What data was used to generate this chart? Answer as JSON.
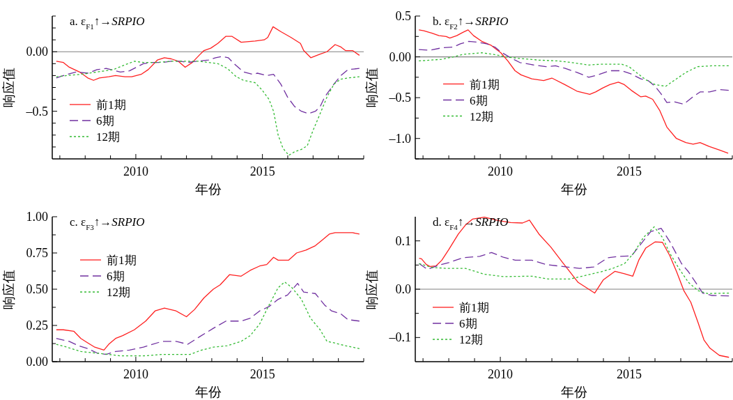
{
  "chart_data": [
    {
      "type": "line",
      "title": "a. ε$_{F1}$↑→*SRPIO*",
      "xlabel": "年份",
      "ylabel": "响应值",
      "legend": "bottom left",
      "xlim": [
        2006.7,
        2019
      ],
      "xticks": [
        {
          "value": 2007,
          "label": null
        },
        {
          "value": 2008,
          "label": null
        },
        {
          "value": 2009,
          "label": null
        },
        {
          "value": 2010,
          "label": "2010"
        },
        {
          "value": 2011,
          "label": null
        },
        {
          "value": 2012,
          "label": null
        },
        {
          "value": 2013,
          "label": null
        },
        {
          "value": 2014,
          "label": null
        },
        {
          "value": 2015,
          "label": "2015"
        },
        {
          "value": 2016,
          "label": null
        },
        {
          "value": 2017,
          "label": null
        },
        {
          "value": 2018,
          "label": null
        },
        {
          "value": 2019,
          "label": null
        }
      ],
      "ylim": [
        -0.9,
        0.3
      ],
      "yticks": [
        {
          "value": -0.8,
          "label": null
        },
        {
          "value": -0.7,
          "label": null
        },
        {
          "value": -0.6,
          "label": null
        },
        {
          "value": -0.5,
          "label": "–0.5"
        },
        {
          "value": -0.4,
          "label": null
        },
        {
          "value": -0.3,
          "label": null
        },
        {
          "value": -0.2,
          "label": null
        },
        {
          "value": -0.1,
          "label": null
        },
        {
          "value": 0,
          "label": "0.00"
        },
        {
          "value": 0.1,
          "label": null
        },
        {
          "value": 0.2,
          "label": null
        },
        {
          "value": 0.3,
          "label": null
        }
      ],
      "ref_lines": [
        {
          "axis": "y",
          "value": 0,
          "color": "#808080"
        }
      ],
      "series": [
        {
          "name": "前1期",
          "color": "#ff2020",
          "line_style": "solid",
          "x": [
            2006.86,
            2007.14,
            2007.37,
            2007.78,
            2008.1,
            2008.33,
            2008.56,
            2008.93,
            2009.2,
            2009.57,
            2009.84,
            2010.21,
            2010.49,
            2010.85,
            2011.13,
            2011.4,
            2011.68,
            2011.95,
            2012.23,
            2012.5,
            2012.69,
            2012.96,
            2013.24,
            2013.56,
            2013.79,
            2014.16,
            2014.71,
            2015.07,
            2015.21,
            2015.42,
            2015.72,
            2016.13,
            2016.5,
            2016.63,
            2016.91,
            2017.28,
            2017.55,
            2017.87,
            2018.1,
            2018.28,
            2018.56,
            2018.83
          ],
          "values": [
            -0.08,
            -0.09,
            -0.13,
            -0.17,
            -0.22,
            -0.24,
            -0.22,
            -0.21,
            -0.2,
            -0.21,
            -0.21,
            -0.19,
            -0.15,
            -0.07,
            -0.05,
            -0.06,
            -0.08,
            -0.13,
            -0.09,
            -0.03,
            0.01,
            0.03,
            0.07,
            0.13,
            0.13,
            0.08,
            0.09,
            0.1,
            0.12,
            0.21,
            0.17,
            0.12,
            0.07,
            0.01,
            -0.05,
            -0.02,
            0.0,
            0.06,
            0.04,
            0.01,
            0.01,
            -0.03
          ]
        },
        {
          "name": "6期",
          "color": "#7030a0",
          "line_style": "dashed",
          "x": [
            2006.86,
            2007.28,
            2007.64,
            2008.1,
            2008.47,
            2008.83,
            2009.2,
            2009.39,
            2009.75,
            2010.03,
            2010.3,
            2010.67,
            2011.04,
            2011.4,
            2011.77,
            2012.05,
            2012.41,
            2012.87,
            2013.15,
            2013.42,
            2013.65,
            2013.88,
            2014.25,
            2014.61,
            2014.8,
            2015.17,
            2015.44,
            2015.72,
            2015.99,
            2016.27,
            2016.54,
            2016.82,
            2017.09,
            2017.28,
            2017.46,
            2017.83,
            2018.1,
            2018.38,
            2018.83
          ],
          "values": [
            -0.22,
            -0.19,
            -0.17,
            -0.18,
            -0.15,
            -0.14,
            -0.16,
            -0.17,
            -0.16,
            -0.13,
            -0.1,
            -0.09,
            -0.09,
            -0.08,
            -0.08,
            -0.09,
            -0.08,
            -0.07,
            -0.05,
            -0.04,
            -0.05,
            -0.1,
            -0.17,
            -0.19,
            -0.18,
            -0.2,
            -0.19,
            -0.27,
            -0.38,
            -0.46,
            -0.5,
            -0.52,
            -0.5,
            -0.46,
            -0.38,
            -0.27,
            -0.2,
            -0.15,
            -0.14
          ]
        },
        {
          "name": "12期",
          "color": "#33bb33",
          "line_style": "dotted",
          "x": [
            2006.86,
            2007.28,
            2007.83,
            2008.47,
            2009.11,
            2009.57,
            2009.94,
            2010.3,
            2010.85,
            2011.4,
            2011.95,
            2012.5,
            2012.87,
            2013.24,
            2013.61,
            2013.97,
            2014.25,
            2014.71,
            2014.98,
            2015.26,
            2015.44,
            2015.62,
            2015.81,
            2016.04,
            2016.27,
            2016.54,
            2016.77,
            2017.0,
            2017.28,
            2017.55,
            2017.83,
            2018.1,
            2018.38,
            2018.83
          ],
          "values": [
            -0.21,
            -0.2,
            -0.19,
            -0.17,
            -0.15,
            -0.11,
            -0.08,
            -0.09,
            -0.09,
            -0.08,
            -0.08,
            -0.08,
            -0.09,
            -0.1,
            -0.14,
            -0.21,
            -0.24,
            -0.26,
            -0.32,
            -0.4,
            -0.5,
            -0.7,
            -0.81,
            -0.87,
            -0.84,
            -0.82,
            -0.79,
            -0.66,
            -0.52,
            -0.38,
            -0.27,
            -0.23,
            -0.22,
            -0.21
          ]
        }
      ]
    },
    {
      "type": "line",
      "title": "b. ε$_{F2}$↑→*SRPIO*",
      "xlabel": "年份",
      "ylabel": "响应值",
      "legend": "left",
      "xlim": [
        2006.7,
        2019
      ],
      "xticks": [
        {
          "value": 2007,
          "label": null
        },
        {
          "value": 2008,
          "label": null
        },
        {
          "value": 2009,
          "label": null
        },
        {
          "value": 2010,
          "label": "2010"
        },
        {
          "value": 2011,
          "label": null
        },
        {
          "value": 2012,
          "label": null
        },
        {
          "value": 2013,
          "label": null
        },
        {
          "value": 2014,
          "label": null
        },
        {
          "value": 2015,
          "label": "2015"
        },
        {
          "value": 2016,
          "label": null
        },
        {
          "value": 2017,
          "label": null
        },
        {
          "value": 2018,
          "label": null
        },
        {
          "value": 2019,
          "label": null
        }
      ],
      "ylim": [
        -1.25,
        0.5
      ],
      "yticks": [
        {
          "value": -1.25,
          "label": null
        },
        {
          "value": -1,
          "label": "–1.0"
        },
        {
          "value": -0.75,
          "label": null
        },
        {
          "value": -0.5,
          "label": "–0.5"
        },
        {
          "value": -0.25,
          "label": null
        },
        {
          "value": 0,
          "label": "0.00"
        },
        {
          "value": 0.25,
          "label": null
        },
        0.5
      ],
      "ref_lines": [
        {
          "axis": "y",
          "value": 0,
          "color": "#808080"
        }
      ],
      "series": [
        {
          "name": "前1期",
          "color": "#ff2020",
          "line_style": "solid",
          "x": [
            2006.84,
            2007.03,
            2007.35,
            2007.62,
            2007.9,
            2008.04,
            2008.31,
            2008.55,
            2008.75,
            2008.96,
            2009.28,
            2009.65,
            2010.02,
            2010.29,
            2010.57,
            2010.8,
            2011.22,
            2011.68,
            2012.0,
            2012.5,
            2012.97,
            2013.47,
            2013.7,
            2013.98,
            2014.25,
            2014.58,
            2014.81,
            2015.08,
            2015.45,
            2015.64,
            2015.91,
            2016.19,
            2016.46,
            2016.83,
            2017.2,
            2017.48,
            2017.75,
            2018.12,
            2018.49,
            2018.84
          ],
          "values": [
            0.33,
            0.32,
            0.29,
            0.26,
            0.25,
            0.23,
            0.26,
            0.3,
            0.33,
            0.26,
            0.19,
            0.14,
            0.05,
            -0.05,
            -0.17,
            -0.22,
            -0.27,
            -0.29,
            -0.26,
            -0.34,
            -0.42,
            -0.46,
            -0.43,
            -0.38,
            -0.34,
            -0.31,
            -0.34,
            -0.41,
            -0.49,
            -0.48,
            -0.52,
            -0.66,
            -0.86,
            -1.0,
            -1.05,
            -1.07,
            -1.05,
            -1.1,
            -1.14,
            -1.18
          ]
        },
        {
          "name": "6期",
          "color": "#7030a0",
          "line_style": "dashed",
          "x": [
            2006.84,
            2007.26,
            2007.72,
            2008.18,
            2008.45,
            2008.78,
            2009.1,
            2009.47,
            2009.79,
            2010.02,
            2010.39,
            2010.76,
            2011.31,
            2011.77,
            2012.14,
            2012.5,
            2012.97,
            2013.43,
            2013.79,
            2014.25,
            2014.71,
            2015.08,
            2015.45,
            2015.73,
            2016.0,
            2016.23,
            2016.46,
            2016.74,
            2017.11,
            2017.43,
            2017.75,
            2018.12,
            2018.49,
            2018.86
          ],
          "values": [
            0.09,
            0.08,
            0.11,
            0.12,
            0.16,
            0.19,
            0.18,
            0.16,
            0.12,
            0.06,
            -0.01,
            -0.07,
            -0.1,
            -0.12,
            -0.11,
            -0.14,
            -0.19,
            -0.25,
            -0.22,
            -0.17,
            -0.17,
            -0.21,
            -0.27,
            -0.29,
            -0.36,
            -0.45,
            -0.56,
            -0.55,
            -0.58,
            -0.5,
            -0.43,
            -0.43,
            -0.4,
            -0.41
          ]
        },
        {
          "name": "12期",
          "color": "#33bb33",
          "line_style": "dotted",
          "x": [
            2006.84,
            2007.3,
            2007.72,
            2008.18,
            2008.55,
            2008.91,
            2009.28,
            2009.74,
            2010.2,
            2010.76,
            2011.49,
            2012.23,
            2012.78,
            2013.43,
            2013.89,
            2014.71,
            2014.99,
            2015.27,
            2015.64,
            2016.0,
            2016.42,
            2016.74,
            2017.2,
            2017.66,
            2018.21,
            2018.86
          ],
          "values": [
            -0.05,
            -0.04,
            -0.03,
            0.0,
            0.03,
            0.04,
            0.05,
            0.03,
            0.0,
            -0.02,
            -0.04,
            -0.05,
            -0.07,
            -0.1,
            -0.09,
            -0.09,
            -0.12,
            -0.19,
            -0.28,
            -0.34,
            -0.36,
            -0.29,
            -0.19,
            -0.12,
            -0.11,
            -0.11
          ]
        }
      ]
    },
    {
      "type": "line",
      "title": "c. ε$_{F3}$↑→*SRPIO*",
      "xlabel": "年份",
      "ylabel": "响应值",
      "legend": "top left",
      "xlim": [
        2006.7,
        2019
      ],
      "xticks": [
        {
          "value": 2007,
          "label": null
        },
        {
          "value": 2008,
          "label": null
        },
        {
          "value": 2009,
          "label": null
        },
        {
          "value": 2010,
          "label": "2010"
        },
        {
          "value": 2011,
          "label": null
        },
        {
          "value": 2012,
          "label": null
        },
        {
          "value": 2013,
          "label": null
        },
        {
          "value": 2014,
          "label": null
        },
        {
          "value": 2015,
          "label": "2015"
        },
        {
          "value": 2016,
          "label": null
        },
        {
          "value": 2017,
          "label": null
        },
        {
          "value": 2018,
          "label": null
        },
        {
          "value": 2019,
          "label": null
        }
      ],
      "ylim": [
        0,
        1
      ],
      "yticks": [
        {
          "value": 0,
          "label": "0.00"
        },
        {
          "value": 0.125,
          "label": null
        },
        0.25,
        {
          "value": 0.375,
          "label": null
        },
        {
          "value": 0.5,
          "label": "0.50"
        },
        {
          "value": 0.625,
          "label": null
        },
        0.75,
        {
          "value": 0.875,
          "label": null
        },
        {
          "value": 1,
          "label": "1.00"
        }
      ],
      "series": [
        {
          "name": "前1期",
          "color": "#ff2020",
          "line_style": "solid",
          "x": [
            2006.86,
            2007.14,
            2007.55,
            2007.83,
            2008.1,
            2008.38,
            2008.74,
            2008.93,
            2009.2,
            2009.48,
            2009.94,
            2010.39,
            2010.76,
            2011.13,
            2011.59,
            2012.0,
            2012.32,
            2012.69,
            2013.06,
            2013.33,
            2013.7,
            2014.16,
            2014.52,
            2014.89,
            2015.17,
            2015.44,
            2015.62,
            2016.03,
            2016.35,
            2016.72,
            2017.09,
            2017.37,
            2017.64,
            2017.87,
            2018.19,
            2018.56,
            2018.83
          ],
          "values": [
            0.22,
            0.22,
            0.21,
            0.16,
            0.13,
            0.1,
            0.08,
            0.12,
            0.16,
            0.18,
            0.22,
            0.28,
            0.35,
            0.37,
            0.35,
            0.31,
            0.36,
            0.44,
            0.5,
            0.53,
            0.6,
            0.59,
            0.63,
            0.66,
            0.67,
            0.72,
            0.7,
            0.7,
            0.75,
            0.77,
            0.8,
            0.84,
            0.88,
            0.89,
            0.89,
            0.89,
            0.88
          ]
        },
        {
          "name": "6期",
          "color": "#7030a0",
          "line_style": "dashed",
          "x": [
            2006.86,
            2007.37,
            2007.73,
            2008.1,
            2008.47,
            2008.83,
            2009.2,
            2009.75,
            2010.3,
            2011.04,
            2011.59,
            2012.05,
            2012.5,
            2013.06,
            2013.56,
            2014.16,
            2014.52,
            2014.89,
            2015.26,
            2015.62,
            2015.99,
            2016.39,
            2016.63,
            2017.09,
            2017.46,
            2017.73,
            2018.1,
            2018.38,
            2018.83
          ],
          "values": [
            0.16,
            0.14,
            0.11,
            0.09,
            0.06,
            0.05,
            0.07,
            0.08,
            0.1,
            0.14,
            0.14,
            0.12,
            0.17,
            0.23,
            0.28,
            0.28,
            0.3,
            0.35,
            0.38,
            0.43,
            0.46,
            0.54,
            0.48,
            0.47,
            0.39,
            0.35,
            0.33,
            0.29,
            0.28
          ]
        },
        {
          "name": "12期",
          "color": "#33bb33",
          "line_style": "dotted",
          "x": [
            2006.86,
            2007.28,
            2007.83,
            2008.38,
            2008.93,
            2009.39,
            2009.85,
            2010.3,
            2011.04,
            2011.68,
            2012.14,
            2012.6,
            2013.06,
            2013.61,
            2014.16,
            2014.52,
            2014.89,
            2015.26,
            2015.62,
            2015.88,
            2016.17,
            2016.54,
            2016.9,
            2017.28,
            2017.55,
            2017.83,
            2018.28,
            2018.83
          ],
          "values": [
            0.12,
            0.1,
            0.07,
            0.06,
            0.05,
            0.04,
            0.04,
            0.04,
            0.05,
            0.05,
            0.05,
            0.08,
            0.1,
            0.11,
            0.14,
            0.18,
            0.26,
            0.39,
            0.51,
            0.55,
            0.51,
            0.43,
            0.3,
            0.22,
            0.14,
            0.13,
            0.11,
            0.09
          ]
        }
      ]
    },
    {
      "type": "line",
      "title": "d. ε$_{F4}$↑→*SRPIO*",
      "xlabel": "年份",
      "ylabel": "响应值",
      "legend": "bottom left",
      "xlim": [
        2006.7,
        2019
      ],
      "xticks": [
        {
          "value": 2007,
          "label": null
        },
        {
          "value": 2008,
          "label": null
        },
        {
          "value": 2009,
          "label": null
        },
        {
          "value": 2010,
          "label": "2010"
        },
        {
          "value": 2011,
          "label": null
        },
        {
          "value": 2012,
          "label": null
        },
        {
          "value": 2013,
          "label": null
        },
        {
          "value": 2014,
          "label": null
        },
        {
          "value": 2015,
          "label": "2015"
        },
        {
          "value": 2016,
          "label": null
        },
        {
          "value": 2017,
          "label": null
        },
        {
          "value": 2018,
          "label": null
        },
        {
          "value": 2019,
          "label": null
        }
      ],
      "ylim": [
        -0.15,
        0.15
      ],
      "yticks": [
        {
          "value": -0.1,
          "label": "–0.1"
        },
        {
          "value": -0.05,
          "label": null
        },
        {
          "value": 0,
          "label": "0.0"
        },
        {
          "value": 0.05,
          "label": null
        },
        0.1
      ],
      "ref_lines": [
        {
          "axis": "y",
          "value": 0,
          "color": "#808080"
        }
      ],
      "series": [
        {
          "name": "前1期",
          "color": "#ff2020",
          "line_style": "solid",
          "x": [
            2006.85,
            2006.94,
            2007.13,
            2007.27,
            2007.5,
            2007.73,
            2008.0,
            2008.37,
            2008.65,
            2008.92,
            2009.38,
            2009.94,
            2010.4,
            2010.86,
            2011.13,
            2011.5,
            2011.96,
            2012.42,
            2012.7,
            2013.02,
            2013.43,
            2013.66,
            2013.99,
            2014.45,
            2014.82,
            2015.14,
            2015.37,
            2015.64,
            2016.01,
            2016.29,
            2016.57,
            2016.84,
            2017.12,
            2017.39,
            2017.67,
            2017.9,
            2018.13,
            2018.5,
            2018.87
          ],
          "values": [
            0.064,
            0.063,
            0.051,
            0.047,
            0.048,
            0.06,
            0.082,
            0.114,
            0.133,
            0.145,
            0.149,
            0.142,
            0.138,
            0.137,
            0.143,
            0.114,
            0.087,
            0.055,
            0.036,
            0.014,
            0.0,
            -0.008,
            0.019,
            0.037,
            0.032,
            0.027,
            0.06,
            0.085,
            0.098,
            0.097,
            0.07,
            0.036,
            -0.003,
            -0.027,
            -0.069,
            -0.105,
            -0.122,
            -0.137,
            -0.141
          ]
        },
        {
          "name": "6期",
          "color": "#7030a0",
          "line_style": "dashed",
          "x": [
            2006.85,
            2007.17,
            2007.63,
            2008.0,
            2008.55,
            2009.2,
            2009.66,
            2010.12,
            2010.58,
            2011.22,
            2011.78,
            2012.42,
            2013.07,
            2013.62,
            2014.17,
            2014.63,
            2015.09,
            2015.46,
            2015.83,
            2016.24,
            2016.57,
            2017.03,
            2017.3,
            2017.58,
            2017.85,
            2018.21,
            2018.87
          ],
          "values": [
            0.053,
            0.041,
            0.05,
            0.055,
            0.065,
            0.068,
            0.076,
            0.066,
            0.06,
            0.06,
            0.051,
            0.047,
            0.043,
            0.046,
            0.065,
            0.068,
            0.069,
            0.094,
            0.119,
            0.126,
            0.099,
            0.053,
            0.036,
            0.014,
            -0.008,
            -0.013,
            -0.014
          ]
        },
        {
          "name": "12期",
          "color": "#33bb33",
          "line_style": "dotted",
          "x": [
            2006.85,
            2007.35,
            2007.91,
            2008.65,
            2009.38,
            2010.12,
            2011.22,
            2011.87,
            2012.7,
            2013.34,
            2013.9,
            2014.36,
            2014.82,
            2015.18,
            2015.55,
            2015.97,
            2016.29,
            2016.57,
            2016.93,
            2017.3,
            2017.67,
            2018.04,
            2018.87
          ],
          "values": [
            0.053,
            0.045,
            0.043,
            0.043,
            0.031,
            0.026,
            0.027,
            0.021,
            0.021,
            0.029,
            0.036,
            0.043,
            0.053,
            0.075,
            0.107,
            0.129,
            0.107,
            0.075,
            0.043,
            0.014,
            -0.003,
            -0.009,
            -0.008
          ]
        }
      ]
    }
  ]
}
